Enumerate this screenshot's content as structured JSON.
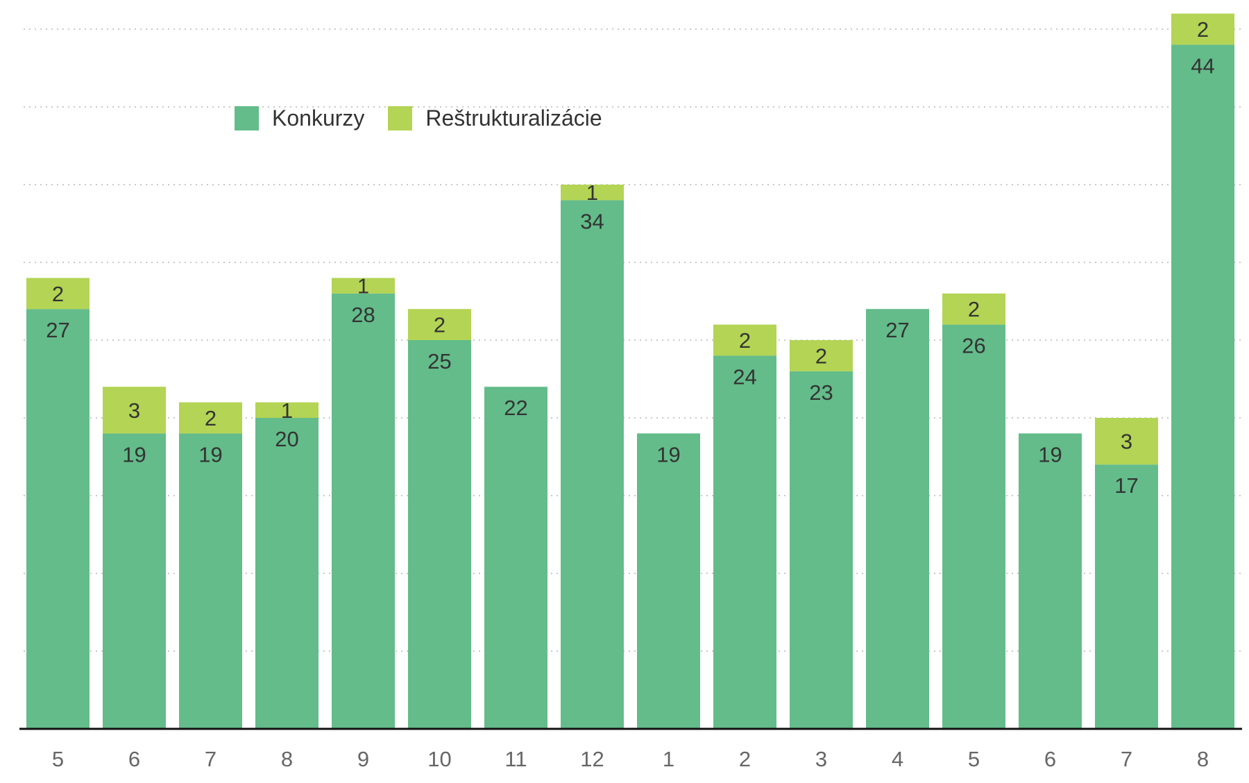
{
  "chart_data": {
    "type": "bar",
    "stacked": true,
    "categories": [
      "5",
      "6",
      "7",
      "8",
      "9",
      "10",
      "11",
      "12",
      "1",
      "2",
      "3",
      "4",
      "5",
      "6",
      "7",
      "8"
    ],
    "series": [
      {
        "name": "Konkurzy",
        "color": "#63bc8a",
        "values": [
          27,
          19,
          19,
          20,
          28,
          25,
          22,
          34,
          19,
          24,
          23,
          27,
          26,
          19,
          17,
          44
        ]
      },
      {
        "name": "Reštrukturalizácie",
        "color": "#b3d454",
        "values": [
          2,
          3,
          2,
          1,
          1,
          2,
          0,
          1,
          0,
          2,
          2,
          0,
          2,
          0,
          3,
          2
        ]
      }
    ],
    "ylim": [
      0,
      45
    ],
    "grid": true,
    "legend": "top-left"
  }
}
